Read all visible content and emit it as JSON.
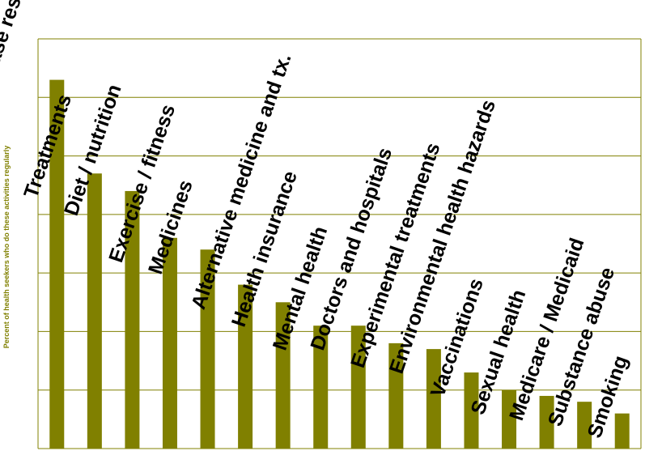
{
  "colors": {
    "bar": "#808000",
    "grid": "#808000",
    "axis": "#808000",
    "ylabel": "#808000",
    "label": "#000000",
    "background": "#ffffff"
  },
  "chart_data": {
    "type": "bar",
    "title": "",
    "xlabel": "",
    "ylabel": "Percent of health seekers who do these activities regularly",
    "ylim": [
      0,
      70
    ],
    "grid": true,
    "legend": "none",
    "categories": [
      "Disease research",
      "Treatments",
      "Diet / nutrition",
      "Exercise / fitness",
      "Medicines",
      "Alternative medicine and tx.",
      "Health insurance",
      "Mental health",
      "Doctors and hospitals",
      "Experimental treatments",
      "Environmental health hazards",
      "Vaccinations",
      "Sexual health",
      "Medicare / Medicaid",
      "Substance abuse",
      "Smoking"
    ],
    "values": [
      63,
      47,
      44,
      36,
      34,
      28,
      25,
      21,
      21,
      18,
      17,
      13,
      10,
      9,
      8,
      6
    ]
  }
}
